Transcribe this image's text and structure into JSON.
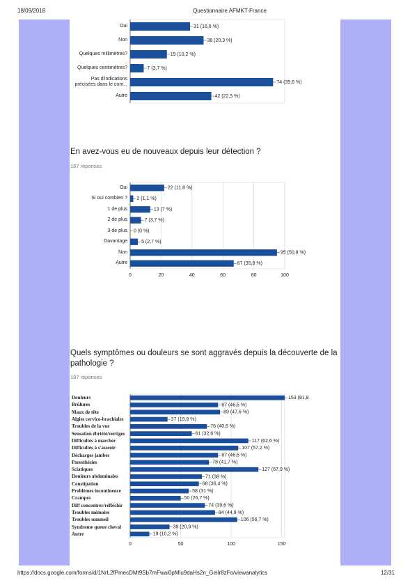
{
  "header": {
    "date": "18/09/2018",
    "title": "Questionnaire AFMKT-France"
  },
  "chart_data": [
    {
      "type": "bar",
      "categories": [
        "Oui",
        "Non",
        "Quelques millimètres?",
        "Quelques centimètres?",
        "Pas d'indications précisées dans le com...",
        "Autre"
      ],
      "values": [
        31,
        38,
        19,
        7,
        74,
        42
      ],
      "value_labels": [
        "31 (16,6 %)",
        "38 (20,3 %)",
        "19 (10,2 %)",
        "7 (3,7 %)",
        "74 (39,6 %)",
        "42 (22,5 %)"
      ],
      "color": "#1a4f9c",
      "xlim": [
        0,
        80
      ],
      "grid": false
    },
    {
      "type": "bar",
      "title": "En avez-vous eu de nouveaux depuis leur détection ?",
      "subtitle": "187 réponses",
      "categories": [
        "Oui",
        "Si oui combien ?",
        "1 de plus",
        "2 de plus",
        "3 de plus",
        "Davantage",
        "Non",
        "Autre"
      ],
      "values": [
        22,
        2,
        13,
        7,
        0,
        5,
        95,
        67
      ],
      "value_labels": [
        "22 (11,8 %)",
        "2 (1,1 %)",
        "13 (7 %)",
        "7 (3,7 %)",
        "0 (0 %)",
        "5 (2,7 %)",
        "95 (50,8 %)",
        "67 (35,8 %)"
      ],
      "color": "#1a4f9c",
      "xlim": [
        0,
        100
      ],
      "xticks": [
        0,
        20,
        40,
        60,
        80,
        100
      ],
      "grid": true
    },
    {
      "type": "bar",
      "title": "Quels symptômes ou douleurs se sont aggravés depuis la découverte de la pathologie ?",
      "subtitle": "187 réponses",
      "categories": [
        "Douleurs",
        "Brûlures",
        "Maux de tête",
        "Algies cervico-brachiales",
        "Troubles de la vue",
        "Sensation ébriété/vertiges",
        "Difficultés à marcher",
        "Difficultés à s'asseoir",
        "Décharges jambes",
        "Paresthésies",
        "Sciatiques",
        "Douleurs abdominales",
        "Constipation",
        "Problèmes incontinence",
        "Crampes",
        "Diff concentrer/réfléchir",
        "Troubles mémoire",
        "Troubles sommeil",
        "Syndrome queue cheval",
        "Autre"
      ],
      "values": [
        153,
        87,
        89,
        37,
        76,
        61,
        117,
        107,
        87,
        78,
        127,
        71,
        68,
        58,
        50,
        74,
        84,
        106,
        39,
        19
      ],
      "value_labels": [
        "153 (81,8",
        "87 (46,5 %)",
        "89 (47,6 %)",
        "37 (19,8 %)",
        "76 (40,6 %)",
        "61 (32,6 %)",
        "117 (62,6 %)",
        "107 (57,2 %)",
        "87 (46,5 %)",
        "78 (41,7 %)",
        "127 (67,9 %)",
        "71 (38 %)",
        "68 (36,4 %)",
        "58 (31 %)",
        "50 (26,7 %)",
        "74 (39,6 %)",
        "84 (44,9 %)",
        "106 (56,7 %)",
        "39 (20,9 %)",
        "19 (10,2 %)"
      ],
      "color": "#1a4f9c",
      "xlim": [
        0,
        153
      ],
      "xticks": [
        0,
        50,
        100,
        150
      ],
      "grid": true
    }
  ],
  "footer": {
    "url": "https://docs.google.com/forms/d/1NrL2fPmecDMt9Sb7mFwai0pMlu9daHs2n_Geilr8zFo/viewanalytics",
    "page": "12/31"
  }
}
